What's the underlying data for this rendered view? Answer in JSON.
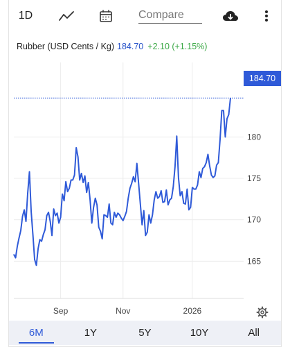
{
  "toolbar": {
    "period": "1D",
    "compare_placeholder": "Compare",
    "icons": [
      "line-chart-icon",
      "calendar-icon",
      "cloud-download-icon",
      "more-vertical-icon"
    ]
  },
  "header": {
    "name": "Rubber (USD Cents / Kg)",
    "price": "184.70",
    "change": "+2.10 (+1.15%)"
  },
  "price_tag": "184.70",
  "colors": {
    "line": "#2f5ad8",
    "positive": "#3aa845",
    "tag": "#2f5ad8"
  },
  "ranges": [
    {
      "label": "6M",
      "active": true
    },
    {
      "label": "1Y",
      "active": false
    },
    {
      "label": "5Y",
      "active": false
    },
    {
      "label": "10Y",
      "active": false
    },
    {
      "label": "All",
      "active": false
    }
  ],
  "chart_data": {
    "type": "line",
    "title": "Rubber (USD Cents / Kg)",
    "xlabel": "",
    "ylabel": "",
    "grid": true,
    "ylim": [
      160.5,
      189.0
    ],
    "xlim": [
      0,
      131
    ],
    "x_ticks": [
      {
        "x": 27,
        "label": "Sep"
      },
      {
        "x": 63,
        "label": "Nov"
      },
      {
        "x": 103,
        "label": "2026"
      }
    ],
    "y_ticks": [
      165,
      170,
      175,
      180
    ],
    "last_value": 184.7,
    "series": [
      {
        "name": "Rubber",
        "y": [
          165.8,
          165.4,
          166.8,
          167.8,
          168.7,
          170.4,
          171.2,
          169.8,
          173.2,
          175.8,
          171.0,
          168.2,
          165.2,
          164.5,
          166.5,
          167.6,
          167.4,
          168.2,
          168.8,
          170.5,
          170.9,
          169.8,
          168.1,
          171.3,
          170.5,
          170.8,
          169.6,
          170.3,
          173.1,
          172.3,
          174.6,
          173.4,
          173.8,
          174.8,
          174.8,
          175.4,
          178.7,
          177.6,
          174.8,
          175.6,
          174.5,
          175.3,
          173.3,
          174.5,
          172.4,
          169.6,
          171.5,
          172.6,
          171.8,
          169.1,
          168.6,
          167.7,
          170.6,
          170.5,
          170.3,
          171.9,
          169.6,
          169.4,
          170.9,
          170.3,
          170.8,
          170.6,
          170.2,
          169.9,
          170.4,
          171.0,
          172.6,
          173.8,
          174.4,
          175.2,
          174.6,
          176.8,
          174.4,
          171.9,
          169.4,
          171.1,
          168.1,
          168.5,
          170.6,
          169.6,
          170.6,
          172.4,
          173.4,
          172.6,
          172.8,
          173.5,
          172.1,
          172.2,
          173.6,
          171.8,
          172.4,
          172.6,
          174.0,
          176.4,
          180.1,
          175.1,
          172.9,
          173.4,
          172.0,
          171.9,
          173.7,
          171.2,
          171.5,
          173.9,
          173.7,
          173.7,
          174.2,
          175.8,
          175.1,
          176.2,
          176.4,
          176.9,
          177.9,
          176.5,
          175.4,
          175.1,
          175.3,
          176.6,
          176.9,
          179.7,
          183.2,
          183.2,
          180.0,
          182.2,
          182.7,
          184.7
        ]
      }
    ]
  }
}
